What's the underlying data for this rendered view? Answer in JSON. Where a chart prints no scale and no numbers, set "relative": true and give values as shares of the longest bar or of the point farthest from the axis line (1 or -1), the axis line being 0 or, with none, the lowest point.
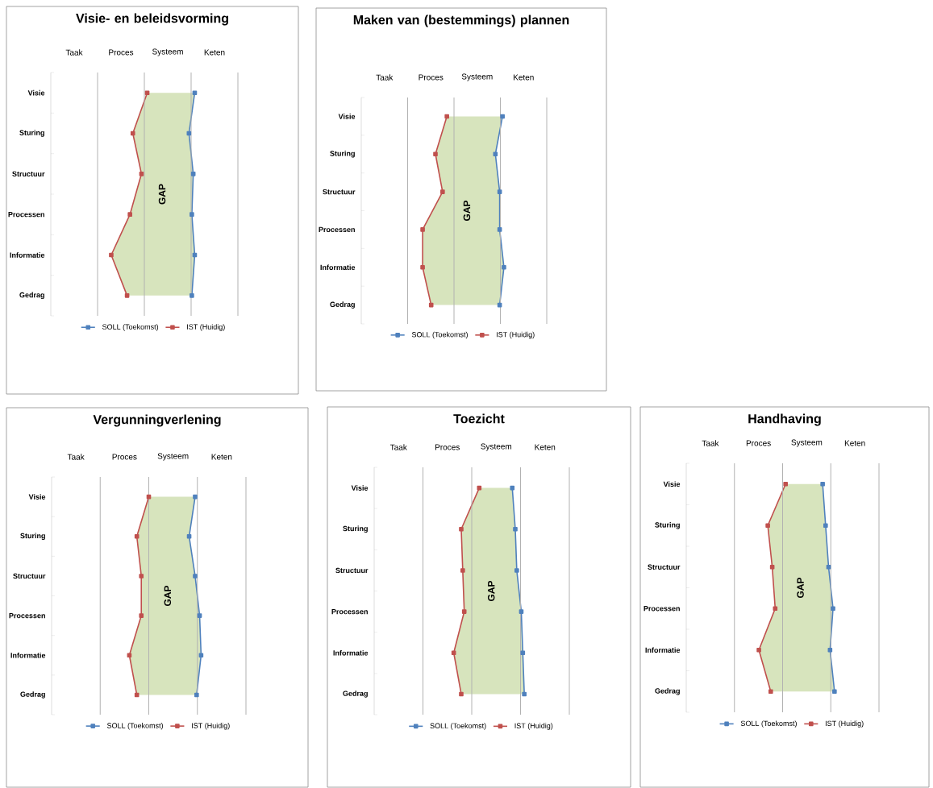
{
  "chart_data": [
    {
      "type": "line",
      "title": "Visie- en beleidsvorming",
      "orientation": "horizontal",
      "relative": true,
      "categories": [
        "Visie",
        "Sturing",
        "Structuur",
        "Processen",
        "Informatie",
        "Gedrag"
      ],
      "grid": "x",
      "legend": "bottom",
      "marker": "square",
      "annotations": [
        "Taak",
        "Proces",
        "Systeem",
        "Keten",
        "GAP"
      ],
      "series": [
        {
          "name": "SOLL (Toekomst)",
          "color": "#4f81bd",
          "values": [
            1,
            0.96,
            0.99,
            0.98,
            1,
            0.98
          ],
          "lower": [
            0.67,
            0.57,
            0.63,
            0.55,
            0.42,
            0.53
          ],
          "upper": [
            1,
            0.96,
            0.99,
            0.98,
            1,
            0.98
          ]
        },
        {
          "name": "IST (Huidig)",
          "color": "#c0504d",
          "values": [
            0.67,
            0.57,
            0.63,
            0.55,
            0.42,
            0.53
          ]
        }
      ]
    },
    {
      "type": "line",
      "title": "Maken van (bestemmings) plannen",
      "orientation": "horizontal",
      "relative": true,
      "categories": [
        "Visie",
        "Sturing",
        "Structuur",
        "Processen",
        "Informatie",
        "Gedrag"
      ],
      "grid": "x",
      "legend": "bottom",
      "marker": "square",
      "annotations": [
        "Taak",
        "Proces",
        "Systeem",
        "Keten",
        "GAP"
      ],
      "series": [
        {
          "name": "SOLL (Toekomst)",
          "color": "#4f81bd",
          "values": [
            0.99,
            0.94,
            0.97,
            0.97,
            1,
            0.97
          ],
          "lower": [
            0.6,
            0.52,
            0.57,
            0.43,
            0.43,
            0.49
          ],
          "upper": [
            0.99,
            0.94,
            0.97,
            0.97,
            1,
            0.97
          ]
        },
        {
          "name": "IST (Huidig)",
          "color": "#c0504d",
          "values": [
            0.6,
            0.52,
            0.57,
            0.43,
            0.43,
            0.49
          ]
        }
      ]
    },
    {
      "type": "line",
      "title": "Vergunningverlening",
      "orientation": "horizontal",
      "relative": true,
      "categories": [
        "Visie",
        "Sturing",
        "Structuur",
        "Processen",
        "Informatie",
        "Gedrag"
      ],
      "grid": "x",
      "legend": "bottom",
      "marker": "square",
      "annotations": [
        "Taak",
        "Proces",
        "Systeem",
        "Keten",
        "GAP"
      ],
      "series": [
        {
          "name": "SOLL (Toekomst)",
          "color": "#4f81bd",
          "values": [
            0.96,
            0.92,
            0.96,
            0.99,
            1,
            0.97
          ],
          "lower": [
            0.65,
            0.57,
            0.6,
            0.6,
            0.52,
            0.57
          ],
          "upper": [
            0.96,
            0.92,
            0.96,
            0.99,
            1,
            0.97
          ]
        },
        {
          "name": "IST (Huidig)",
          "color": "#c0504d",
          "values": [
            0.65,
            0.57,
            0.6,
            0.6,
            0.52,
            0.57
          ]
        }
      ]
    },
    {
      "type": "line",
      "title": "Toezicht",
      "orientation": "horizontal",
      "relative": true,
      "categories": [
        "Visie",
        "Sturing",
        "Structuur",
        "Processen",
        "Informatie",
        "Gedrag"
      ],
      "grid": "x",
      "legend": "bottom",
      "marker": "square",
      "annotations": [
        "Taak",
        "Proces",
        "Systeem",
        "Keten",
        "GAP"
      ],
      "series": [
        {
          "name": "SOLL (Toekomst)",
          "color": "#4f81bd",
          "values": [
            0.92,
            0.94,
            0.95,
            0.98,
            0.99,
            1
          ],
          "lower": [
            0.7,
            0.58,
            0.59,
            0.6,
            0.53,
            0.58
          ],
          "upper": [
            0.92,
            0.94,
            0.95,
            0.98,
            0.99,
            1
          ]
        },
        {
          "name": "IST (Huidig)",
          "color": "#c0504d",
          "values": [
            0.7,
            0.58,
            0.59,
            0.6,
            0.53,
            0.58
          ]
        }
      ]
    },
    {
      "type": "line",
      "title": "Handhaving",
      "orientation": "horizontal",
      "relative": true,
      "categories": [
        "Visie",
        "Sturing",
        "Structuur",
        "Processen",
        "Informatie",
        "Gedrag"
      ],
      "grid": "x",
      "legend": "bottom",
      "marker": "square",
      "annotations": [
        "Taak",
        "Proces",
        "Systeem",
        "Keten",
        "GAP"
      ],
      "series": [
        {
          "name": "SOLL (Toekomst)",
          "color": "#4f81bd",
          "values": [
            0.92,
            0.94,
            0.96,
            0.99,
            0.97,
            1
          ],
          "lower": [
            0.67,
            0.55,
            0.58,
            0.6,
            0.49,
            0.57
          ],
          "upper": [
            0.92,
            0.94,
            0.96,
            0.99,
            0.97,
            1
          ]
        },
        {
          "name": "IST (Huidig)",
          "color": "#c0504d",
          "values": [
            0.67,
            0.55,
            0.58,
            0.6,
            0.49,
            0.57
          ]
        }
      ]
    }
  ]
}
